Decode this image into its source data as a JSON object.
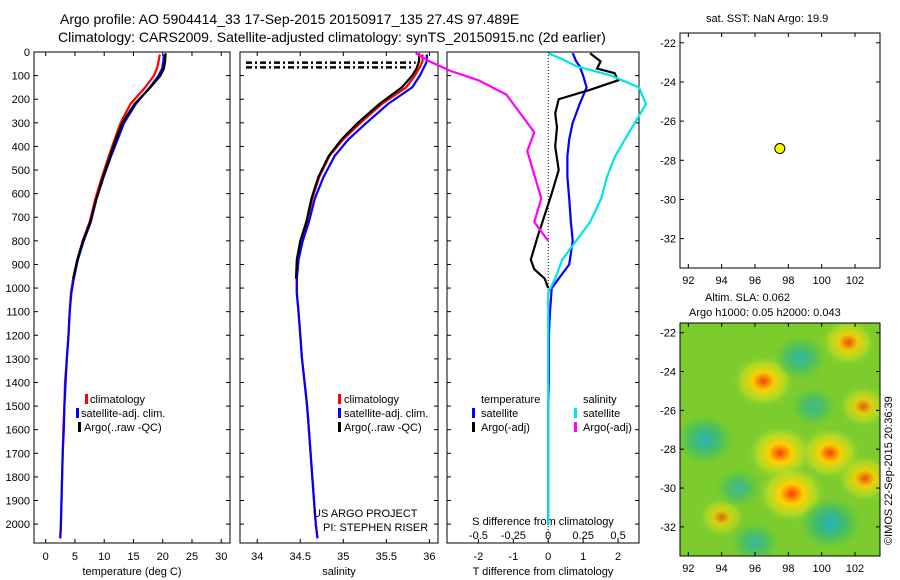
{
  "header": {
    "title1": "Argo profile: AO 5904414_33 17-Sep-2015 20150917_135 27.4S 97.489E",
    "title2": "Climatology: CARS2009. Satellite-adjusted climatology: synTS_20150915.nc (2d earlier)"
  },
  "colors": {
    "climatology": "#ff0000",
    "satellite": "#0000ff",
    "argo": "#000000",
    "sal_sat": "#00e5e5",
    "sal_argo": "#ff00ff",
    "float_marker": "#ffff00"
  },
  "depth_ticks": [
    "0",
    "100",
    "200",
    "300",
    "400",
    "500",
    "600",
    "700",
    "800",
    "900",
    "1000",
    "1100",
    "1200",
    "1300",
    "1400",
    "1500",
    "1600",
    "1700",
    "1800",
    "1900",
    "2000"
  ],
  "legend_profiles": [
    "climatology",
    "satellite-adj. clim.",
    "Argo(..raw -QC)"
  ],
  "diff_legend": {
    "temp_head": "temperature",
    "sal_head": "salinity",
    "satellite": "satellite",
    "argo": "Argo(-adj)"
  },
  "credits": {
    "line1": "US ARGO PROJECT",
    "line2": "PI: STEPHEN RISER"
  },
  "map_top": {
    "title": "sat. SST: NaN Argo: 19.9"
  },
  "map_bottom": {
    "title1": "Altim. SLA: 0.062",
    "title2": "Argo h1000: 0.05 h2000: 0.043",
    "ylabel": "©IMOS 22-Sep-2015 20:36:39"
  },
  "chart_data": [
    {
      "type": "line",
      "name": "temperature",
      "xlabel": "temperature (deg C)",
      "ylabel": "",
      "xlim": [
        -2,
        31.5
      ],
      "ylim": [
        2080,
        0
      ],
      "xticks": [
        "0",
        "5",
        "10",
        "15",
        "20",
        "25",
        "30"
      ],
      "series": [
        {
          "name": "climatology",
          "x": [
            19.5,
            19.3,
            19,
            18.5,
            17,
            14.5,
            12.8,
            11.8,
            10.8,
            9.6,
            8.5,
            7.5,
            6.3,
            5.4,
            4.7,
            4.3,
            4.1,
            3.9,
            3.6,
            3.3,
            3.2,
            3.0,
            2.9,
            2.8,
            2.7,
            2.6,
            2.5
          ],
          "y": [
            10,
            40,
            70,
            100,
            150,
            220,
            300,
            370,
            440,
            530,
            620,
            720,
            800,
            880,
            960,
            1020,
            1100,
            1200,
            1300,
            1400,
            1500,
            1600,
            1700,
            1800,
            1900,
            2000,
            2060
          ]
        },
        {
          "name": "satellite-adj. clim.",
          "x": [
            20.2,
            20.1,
            19.9,
            19.3,
            17.8,
            15.4,
            13.4,
            12.3,
            11.2,
            9.9,
            8.7,
            7.7,
            6.5,
            5.5,
            4.8,
            4.4,
            4.1,
            3.9,
            3.6,
            3.4,
            3.2,
            3.1,
            2.9,
            2.8,
            2.7,
            2.6,
            2.5
          ],
          "y": [
            10,
            40,
            70,
            100,
            150,
            220,
            300,
            370,
            440,
            530,
            620,
            720,
            800,
            880,
            960,
            1020,
            1100,
            1200,
            1300,
            1400,
            1500,
            1600,
            1700,
            1800,
            1900,
            2000,
            2060
          ]
        },
        {
          "name": "Argo(..raw -QC)",
          "x": [
            20.5,
            20.4,
            20.2,
            19.6,
            17.9,
            15.2,
            13.1,
            12.0,
            11.0,
            9.8,
            8.7,
            7.6,
            6.4,
            5.4,
            4.7
          ],
          "y": [
            5,
            40,
            70,
            100,
            150,
            220,
            300,
            370,
            440,
            530,
            620,
            720,
            800,
            880,
            960
          ]
        }
      ]
    },
    {
      "type": "line",
      "name": "salinity",
      "xlabel": "salinity",
      "ylabel": "",
      "xlim": [
        33.8,
        36.1
      ],
      "ylim": [
        2080,
        0
      ],
      "xticks": [
        "34",
        "34.5",
        "35",
        "35.5",
        "36"
      ],
      "series": [
        {
          "name": "climatology",
          "x": [
            35.92,
            35.92,
            35.88,
            35.83,
            35.73,
            35.45,
            35.2,
            35.0,
            34.84,
            34.72,
            34.64,
            34.58,
            34.52,
            34.48,
            34.46,
            34.46,
            34.48,
            34.5,
            34.52,
            34.55,
            34.58,
            34.6,
            34.62,
            34.64,
            34.66,
            34.68,
            34.7
          ],
          "y": [
            10,
            40,
            70,
            100,
            150,
            220,
            300,
            370,
            440,
            530,
            620,
            720,
            800,
            880,
            960,
            1020,
            1100,
            1200,
            1300,
            1400,
            1500,
            1600,
            1700,
            1800,
            1900,
            2000,
            2060
          ]
        },
        {
          "name": "satellite-adj. clim.",
          "x": [
            35.97,
            35.97,
            35.93,
            35.89,
            35.8,
            35.52,
            35.27,
            35.06,
            34.9,
            34.77,
            34.67,
            34.6,
            34.53,
            34.48,
            34.46,
            34.46,
            34.48,
            34.5,
            34.52,
            34.55,
            34.58,
            34.6,
            34.62,
            34.64,
            34.66,
            34.68,
            34.7
          ],
          "y": [
            10,
            40,
            70,
            100,
            150,
            220,
            300,
            370,
            440,
            530,
            620,
            720,
            800,
            880,
            960,
            1020,
            1100,
            1200,
            1300,
            1400,
            1500,
            1600,
            1700,
            1800,
            1900,
            2000,
            2060
          ]
        },
        {
          "name": "Argo(..raw -QC)",
          "x": [
            35.88,
            35.88,
            35.85,
            35.8,
            35.68,
            35.42,
            35.17,
            34.98,
            34.83,
            34.71,
            34.63,
            34.57,
            34.5,
            34.46,
            34.45
          ],
          "y": [
            5,
            40,
            70,
            100,
            150,
            220,
            300,
            370,
            440,
            530,
            620,
            720,
            800,
            880,
            960
          ]
        }
      ]
    },
    {
      "type": "line",
      "name": "difference from climatology",
      "xlabel": "T difference from climatology",
      "x2label": "S difference from climatology",
      "xlim": [
        -2.9,
        2.6
      ],
      "ylim": [
        2080,
        0
      ],
      "xticks": [
        "-2",
        "-1",
        "0",
        "1",
        "2"
      ],
      "x2ticks": [
        "-0.5",
        "-0.25",
        "0",
        "0.25",
        "0.5"
      ],
      "series": [
        {
          "name": "temperature satellite",
          "x": [
            0.7,
            0.8,
            0.9,
            1.0,
            1.1,
            0.9,
            0.7,
            0.6,
            0.55,
            0.55,
            0.6,
            0.65,
            0.7,
            0.6,
            0.3,
            0.1,
            0.05,
            0.02,
            0.02,
            0.02,
            0.0,
            0.0,
            0.0,
            0.0,
            0.0,
            0.0
          ],
          "y": [
            5,
            40,
            60,
            100,
            150,
            220,
            300,
            370,
            440,
            530,
            620,
            720,
            800,
            900,
            960,
            1000,
            1100,
            1200,
            1300,
            1400,
            1500,
            1600,
            1700,
            1800,
            1900,
            2000
          ]
        },
        {
          "name": "temperature Argo(-adj)",
          "x": [
            1.2,
            1.5,
            1.4,
            1.9,
            2.0,
            1.2,
            0.3,
            0.2,
            0.25,
            0.2,
            0.3,
            0.1,
            -0.3,
            -0.5,
            -0.4,
            -0.1,
            0.0
          ],
          "y": [
            5,
            40,
            70,
            90,
            120,
            160,
            200,
            260,
            320,
            400,
            500,
            600,
            780,
            880,
            920,
            960,
            1000
          ]
        },
        {
          "name": "salinity satellite",
          "x": [
            0.0,
            0.1,
            0.2,
            0.45,
            0.65,
            0.7,
            0.62,
            0.55,
            0.48,
            0.42,
            0.38,
            0.3,
            0.2,
            0.1,
            0.05,
            0.0,
            0.0,
            0.0,
            0.0,
            0.0,
            0.0
          ],
          "y": [
            5,
            30,
            60,
            100,
            150,
            220,
            300,
            370,
            440,
            530,
            620,
            720,
            800,
            880,
            960,
            1020,
            1200,
            1400,
            1600,
            1800,
            2000
          ]
        },
        {
          "name": "salinity Argo(-adj)",
          "x": [
            -0.95,
            -0.85,
            -0.7,
            -0.5,
            -0.3,
            -0.2,
            -0.1,
            -0.15,
            -0.1,
            -0.05,
            -0.1,
            0.0
          ],
          "y": [
            5,
            40,
            80,
            120,
            180,
            260,
            340,
            420,
            520,
            620,
            720,
            800
          ]
        }
      ]
    },
    {
      "type": "scatter",
      "name": "sat. SST map",
      "xlim": [
        91.5,
        103.5
      ],
      "ylim": [
        -33.5,
        -21.5
      ],
      "xticks": [
        "92",
        "94",
        "96",
        "98",
        "100",
        "102"
      ],
      "yticks": [
        "-22",
        "-24",
        "-26",
        "-28",
        "-30",
        "-32"
      ],
      "points": [
        {
          "x": 97.489,
          "y": -27.4
        }
      ]
    },
    {
      "type": "heatmap",
      "name": "altimetry SLA map",
      "xlim": [
        91.5,
        103.5
      ],
      "ylim": [
        -33.5,
        -21.5
      ],
      "xticks": [
        "92",
        "94",
        "96",
        "98",
        "100",
        "102"
      ],
      "yticks": [
        "-22",
        "-24",
        "-26",
        "-28",
        "-30",
        "-32"
      ],
      "blobs": [
        {
          "x": 96.5,
          "y": -24.5,
          "v": 0.8
        },
        {
          "x": 97.5,
          "y": -28.2,
          "v": 0.9
        },
        {
          "x": 98.2,
          "y": -30.3,
          "v": 1.0
        },
        {
          "x": 100.5,
          "y": -28.2,
          "v": 0.8
        },
        {
          "x": 101.6,
          "y": -22.5,
          "v": 0.6
        },
        {
          "x": 102.6,
          "y": -29.5,
          "v": 0.6
        },
        {
          "x": 102.5,
          "y": -25.8,
          "v": 0.4
        },
        {
          "x": 94.0,
          "y": -31.5,
          "v": 0.3
        },
        {
          "x": 93.0,
          "y": -27.5,
          "v": -0.7
        },
        {
          "x": 98.7,
          "y": -23.3,
          "v": -0.5
        },
        {
          "x": 100.5,
          "y": -31.8,
          "v": -0.8
        },
        {
          "x": 95.0,
          "y": -30.0,
          "v": -0.3
        },
        {
          "x": 96.0,
          "y": -32.8,
          "v": -0.4
        },
        {
          "x": 99.5,
          "y": -25.8,
          "v": -0.3
        }
      ]
    }
  ]
}
